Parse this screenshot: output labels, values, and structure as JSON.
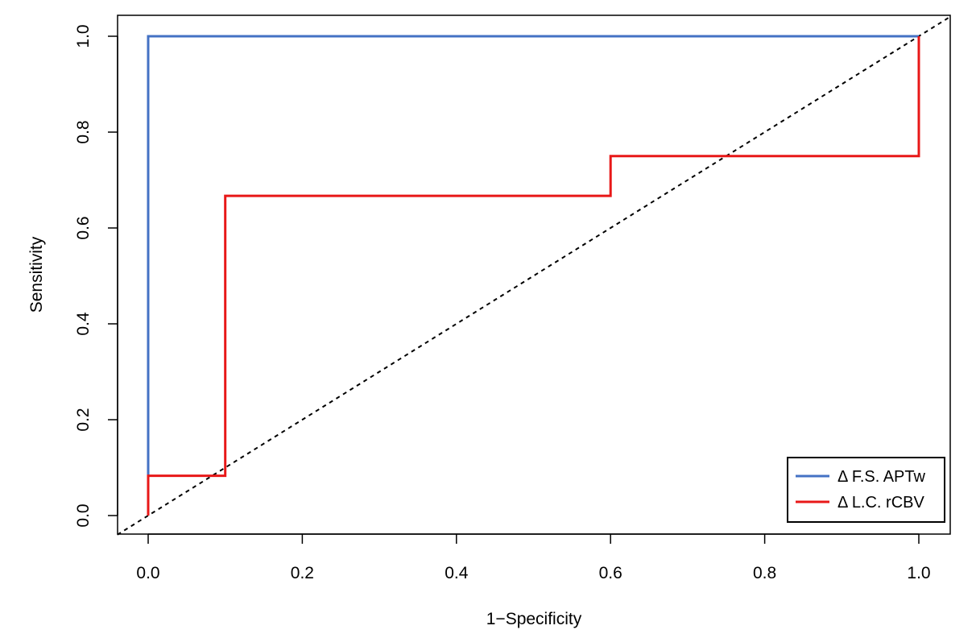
{
  "chart_data": {
    "type": "line",
    "title": "",
    "xlabel": "1−Specificity",
    "ylabel": "Sensitivity",
    "xlim": [
      0,
      1
    ],
    "ylim": [
      0,
      1
    ],
    "x_ticks": [
      0.0,
      0.2,
      0.4,
      0.6,
      0.8,
      1.0
    ],
    "y_ticks": [
      0.0,
      0.2,
      0.4,
      0.6,
      0.8,
      1.0
    ],
    "x_tick_labels": [
      "0.0",
      "0.2",
      "0.4",
      "0.6",
      "0.8",
      "1.0"
    ],
    "y_tick_labels": [
      "0.0",
      "0.2",
      "0.4",
      "0.6",
      "0.8",
      "1.0"
    ],
    "grid": false,
    "legend_position": "bottom-right",
    "series": [
      {
        "name": "Δ F.S. APTw",
        "color": "#4472C4",
        "step": true,
        "x": [
          0.0,
          0.0,
          1.0
        ],
        "y": [
          0.0,
          1.0,
          1.0
        ]
      },
      {
        "name": "Δ L.C. rCBV",
        "color": "#E81818",
        "step": true,
        "x": [
          0.0,
          0.0,
          0.1,
          0.1,
          0.6,
          0.6,
          1.0,
          1.0
        ],
        "y": [
          0.0,
          0.083,
          0.083,
          0.667,
          0.667,
          0.75,
          0.75,
          1.0
        ]
      }
    ],
    "reference_line": {
      "style": "dashed",
      "color": "#000000",
      "x": [
        0,
        1
      ],
      "y": [
        0,
        1
      ]
    }
  }
}
